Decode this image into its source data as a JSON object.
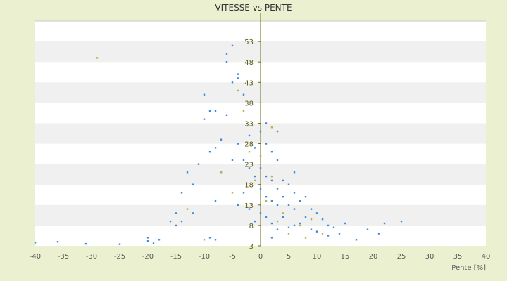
{
  "chart_data": {
    "type": "scatter",
    "title": "VITESSE vs PENTE",
    "xlabel": "Pente [%]",
    "ylabel": "",
    "xlim": [
      -40,
      40
    ],
    "ylim": [
      3,
      58
    ],
    "x_ticks": [
      "-40",
      "-35",
      "-30",
      "-25",
      "-20",
      "-15",
      "-10",
      "-5",
      "0",
      "5",
      "10",
      "15",
      "20",
      "25",
      "30",
      "35",
      "40"
    ],
    "y_ticks": [
      "3",
      "8",
      "13",
      "18",
      "23",
      "28",
      "33",
      "38",
      "43",
      "48",
      "53"
    ],
    "grid": "alternating horizontal bands",
    "legend": "none",
    "colors": {
      "background": "#ebf1d0",
      "band_light": "#ffffff",
      "band_dark": "#f0f0f0",
      "series_main": "#3a8be0",
      "series_alt": "#b8b04a",
      "axis": "#6b6b1a"
    },
    "series": [
      {
        "color": "#3a8be0",
        "x": [
          -40,
          -36,
          -31,
          -25,
          -20,
          -20,
          -19,
          -18,
          -16,
          -15,
          -15,
          -14,
          -14,
          -13,
          -12,
          -11,
          -10,
          -9,
          -9,
          -8,
          -8,
          -7,
          -7,
          -6,
          -6,
          -5,
          -5,
          -5,
          -4,
          -4,
          -4,
          -3,
          -3,
          -3,
          -2,
          -2,
          -2,
          -1,
          -1,
          -1,
          0,
          0,
          0,
          0,
          1,
          1,
          1,
          1,
          2,
          2,
          2,
          2,
          3,
          3,
          3,
          3,
          4,
          4,
          4,
          5,
          5,
          5,
          6,
          6,
          6,
          7,
          7,
          8,
          8,
          9,
          9,
          10,
          10,
          11,
          12,
          13,
          14,
          15,
          17,
          19,
          21,
          22,
          25,
          -9,
          -10,
          -8,
          -6,
          -4,
          4,
          3,
          6,
          12,
          -12,
          -8,
          1,
          2
        ],
        "y": [
          3.8,
          4.0,
          3.5,
          3.4,
          5.0,
          4.2,
          3.6,
          4.5,
          9.0,
          11.0,
          8.0,
          16.0,
          9.0,
          21.0,
          18.0,
          23.0,
          34.0,
          36.0,
          26.0,
          27.0,
          14.0,
          29.0,
          21.0,
          48.0,
          35.0,
          52.0,
          43.0,
          24.0,
          45.0,
          28.0,
          13.0,
          40.0,
          24.0,
          16.0,
          30.0,
          22.0,
          12.0,
          27.0,
          20.0,
          9.0,
          31.0,
          22.0,
          17.0,
          11.0,
          28.0,
          20.0,
          15.0,
          10.0,
          26.0,
          19.0,
          14.0,
          8.5,
          24.0,
          17.0,
          13.0,
          7.0,
          19.0,
          15.0,
          10.0,
          18.0,
          13.0,
          7.5,
          16.0,
          12.0,
          8.0,
          14.0,
          8.5,
          15.0,
          10.0,
          12.0,
          7.0,
          11.0,
          6.5,
          9.5,
          8.0,
          7.5,
          6.0,
          8.5,
          4.5,
          7.0,
          6.0,
          8.5,
          9.0,
          5.0,
          40.0,
          36.0,
          50.0,
          44.0,
          10.0,
          31.0,
          21.0,
          5.5,
          11.0,
          4.5,
          33.0,
          5.0
        ]
      },
      {
        "color": "#b8b04a",
        "x": [
          -29,
          -7,
          -4,
          -3,
          -2,
          -1,
          0,
          1,
          2,
          3,
          4,
          5,
          7,
          9,
          11,
          -13,
          -10,
          -5,
          2,
          8
        ],
        "y": [
          49.0,
          21.0,
          41.0,
          36.0,
          26.0,
          19.0,
          25.0,
          14.0,
          32.0,
          9.0,
          11.0,
          6.0,
          8.0,
          9.5,
          6.0,
          12.0,
          4.5,
          16.0,
          20.0,
          5.0
        ]
      }
    ]
  }
}
